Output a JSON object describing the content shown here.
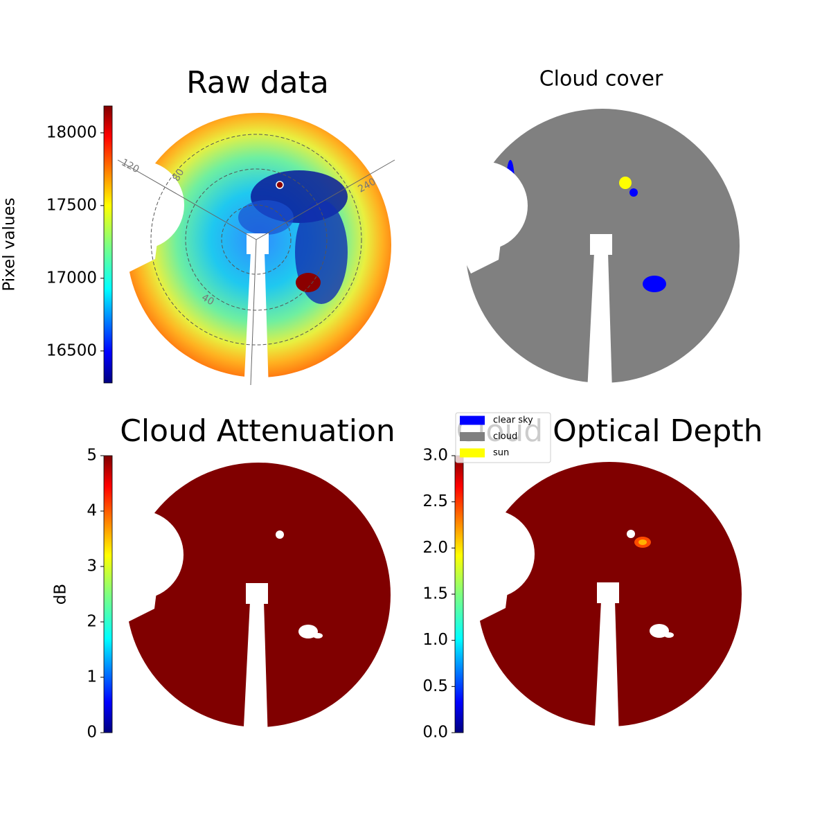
{
  "chart_data": [
    {
      "type": "heatmap",
      "title": "Raw data",
      "ylabel": "Pixel values",
      "colormap": "jet",
      "ylim": [
        16280,
        18185
      ],
      "yticks": [
        16500,
        17000,
        17500,
        18000
      ],
      "polar_labels": [
        "120",
        "80",
        "240",
        "40"
      ]
    },
    {
      "type": "category-map",
      "title": "Cloud cover",
      "series": [
        {
          "name": "clear sky",
          "color": "#0000ff"
        },
        {
          "name": "cloud",
          "color": "#808080"
        },
        {
          "name": "sun",
          "color": "#ffff00"
        }
      ]
    },
    {
      "type": "heatmap",
      "title": "Cloud Attenuation",
      "ylabel": "dB",
      "colormap": "jet",
      "ylim": [
        0,
        5
      ],
      "yticks": [
        0,
        1,
        2,
        3,
        4,
        5
      ]
    },
    {
      "type": "heatmap",
      "title": "Cloud Optical Depth",
      "colormap": "jet",
      "ylim": [
        0,
        3
      ],
      "yticks": [
        {
          "value": 0,
          "label": "0.0"
        },
        0.5,
        {
          "value": 1,
          "label": "1.0"
        },
        1.5,
        {
          "value": 2,
          "label": "2.0"
        },
        2.5,
        {
          "value": 3,
          "label": "3.0"
        }
      ]
    }
  ]
}
